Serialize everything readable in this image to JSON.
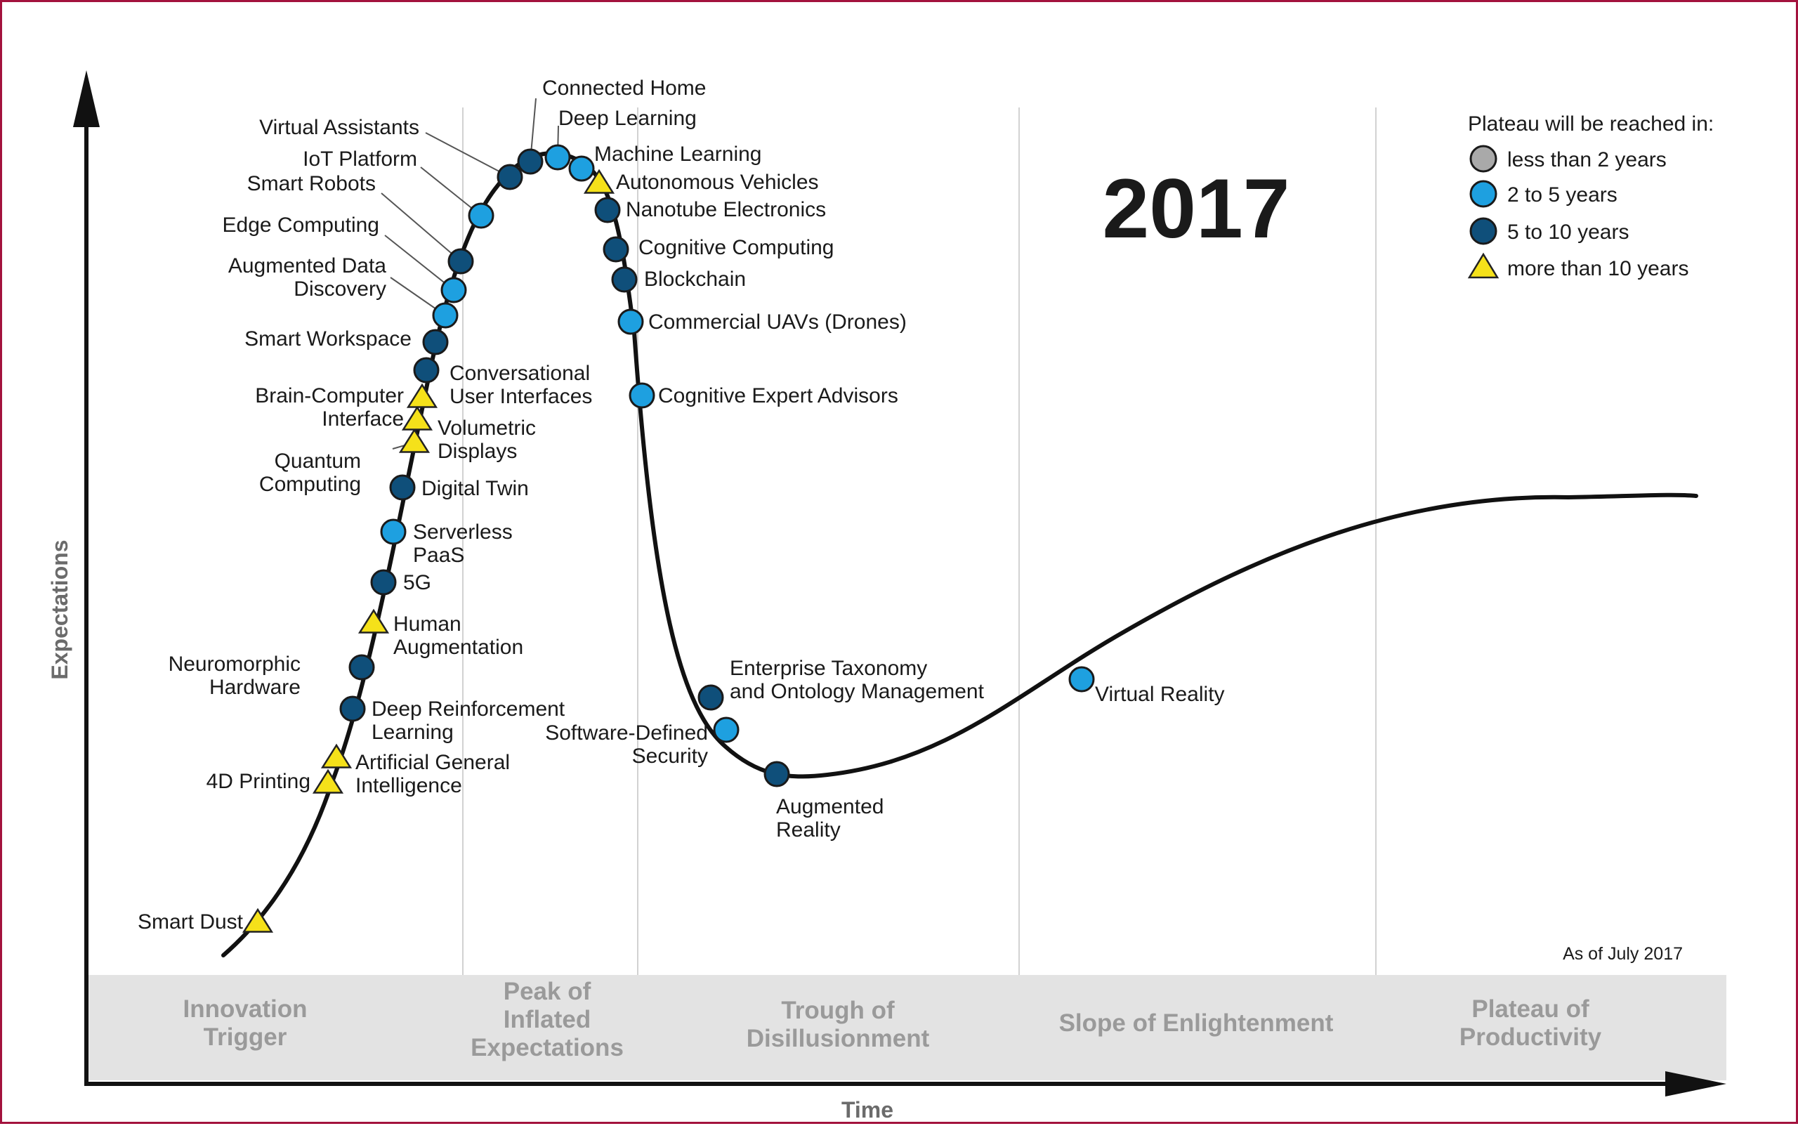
{
  "title": "2017",
  "as_of": "As of July 2017",
  "axes": {
    "x_label": "Time",
    "y_label": "Expectations"
  },
  "phases": [
    {
      "id": "innovation-trigger",
      "lines": [
        "Innovation",
        "Trigger"
      ]
    },
    {
      "id": "peak-of-inflated-expectations",
      "lines": [
        "Peak of",
        "Inflated",
        "Expectations"
      ]
    },
    {
      "id": "trough-of-disillusionment",
      "lines": [
        "Trough of",
        "Disillusionment"
      ]
    },
    {
      "id": "slope-of-enlightenment",
      "lines": [
        "Slope of Enlightenment"
      ]
    },
    {
      "id": "plateau-of-productivity",
      "lines": [
        "Plateau of",
        "Productivity"
      ]
    }
  ],
  "legend": {
    "title": "Plateau will be reached in:",
    "items": [
      {
        "key": "lt2",
        "label": "less than 2 years",
        "shape": "circle",
        "color": "#a9a9a9"
      },
      {
        "key": "2to5",
        "label": "2 to 5 years",
        "shape": "circle",
        "color": "#1ea0e0"
      },
      {
        "key": "5to10",
        "label": "5 to 10 years",
        "shape": "circle",
        "color": "#0f4f7a"
      },
      {
        "key": "gt10",
        "label": "more than 10 years",
        "shape": "triangle",
        "color": "#f5e11a"
      }
    ]
  },
  "colors": {
    "frame": "#a3123d",
    "title": "#a3123d",
    "curve": "#111111",
    "phase_band": "#e3e3e3",
    "phase_text": "#9a9a9a"
  },
  "technologies": [
    {
      "name": "Smart Dust",
      "lines": [
        "Smart Dust"
      ],
      "category": "gt10"
    },
    {
      "name": "4D Printing",
      "lines": [
        "4D Printing"
      ],
      "category": "gt10"
    },
    {
      "name": "Artificial General Intelligence",
      "lines": [
        "Artificial General",
        "Intelligence"
      ],
      "category": "gt10"
    },
    {
      "name": "Deep Reinforcement Learning",
      "lines": [
        "Deep Reinforcement",
        "Learning"
      ],
      "category": "5to10"
    },
    {
      "name": "Neuromorphic Hardware",
      "lines": [
        "Neuromorphic",
        "Hardware"
      ],
      "category": "5to10"
    },
    {
      "name": "Human Augmentation",
      "lines": [
        "Human",
        "Augmentation"
      ],
      "category": "gt10"
    },
    {
      "name": "5G",
      "lines": [
        "5G"
      ],
      "category": "5to10"
    },
    {
      "name": "Serverless PaaS",
      "lines": [
        "Serverless",
        "PaaS"
      ],
      "category": "2to5"
    },
    {
      "name": "Digital Twin",
      "lines": [
        "Digital Twin"
      ],
      "category": "5to10"
    },
    {
      "name": "Quantum Computing",
      "lines": [
        "Quantum",
        "Computing"
      ],
      "category": "gt10"
    },
    {
      "name": "Volumetric Displays",
      "lines": [
        "Volumetric",
        "Displays"
      ],
      "category": "gt10"
    },
    {
      "name": "Brain-Computer Interface",
      "lines": [
        "Brain-Computer",
        "Interface"
      ],
      "category": "gt10"
    },
    {
      "name": "Conversational User Interfaces",
      "lines": [
        "Conversational",
        "User Interfaces"
      ],
      "category": "5to10"
    },
    {
      "name": "Smart Workspace",
      "lines": [
        "Smart Workspace"
      ],
      "category": "5to10"
    },
    {
      "name": "Augmented Data Discovery",
      "lines": [
        "Augmented Data",
        "Discovery"
      ],
      "category": "2to5"
    },
    {
      "name": "Edge Computing",
      "lines": [
        "Edge Computing"
      ],
      "category": "2to5"
    },
    {
      "name": "Smart Robots",
      "lines": [
        "Smart Robots"
      ],
      "category": "5to10"
    },
    {
      "name": "IoT Platform",
      "lines": [
        "IoT Platform"
      ],
      "category": "2to5"
    },
    {
      "name": "Virtual Assistants",
      "lines": [
        "Virtual Assistants"
      ],
      "category": "5to10"
    },
    {
      "name": "Connected Home",
      "lines": [
        "Connected Home"
      ],
      "category": "5to10"
    },
    {
      "name": "Deep Learning",
      "lines": [
        "Deep Learning"
      ],
      "category": "2to5"
    },
    {
      "name": "Machine Learning",
      "lines": [
        "Machine Learning"
      ],
      "category": "2to5"
    },
    {
      "name": "Autonomous Vehicles",
      "lines": [
        "Autonomous Vehicles"
      ],
      "category": "gt10"
    },
    {
      "name": "Nanotube Electronics",
      "lines": [
        "Nanotube Electronics"
      ],
      "category": "5to10"
    },
    {
      "name": "Cognitive Computing",
      "lines": [
        "Cognitive Computing"
      ],
      "category": "5to10"
    },
    {
      "name": "Blockchain",
      "lines": [
        "Blockchain"
      ],
      "category": "5to10"
    },
    {
      "name": "Commercial UAVs (Drones)",
      "lines": [
        "Commercial UAVs (Drones)"
      ],
      "category": "2to5"
    },
    {
      "name": "Cognitive Expert Advisors",
      "lines": [
        "Cognitive Expert Advisors"
      ],
      "category": "2to5"
    },
    {
      "name": "Enterprise Taxonomy and Ontology Management",
      "lines": [
        "Enterprise Taxonomy",
        "and Ontology Management"
      ],
      "category": "5to10"
    },
    {
      "name": "Software-Defined Security",
      "lines": [
        "Software-Defined",
        "Security"
      ],
      "category": "2to5"
    },
    {
      "name": "Augmented Reality",
      "lines": [
        "Augmented",
        "Reality"
      ],
      "category": "5to10"
    },
    {
      "name": "Virtual Reality",
      "lines": [
        "Virtual Reality"
      ],
      "category": "2to5"
    }
  ]
}
